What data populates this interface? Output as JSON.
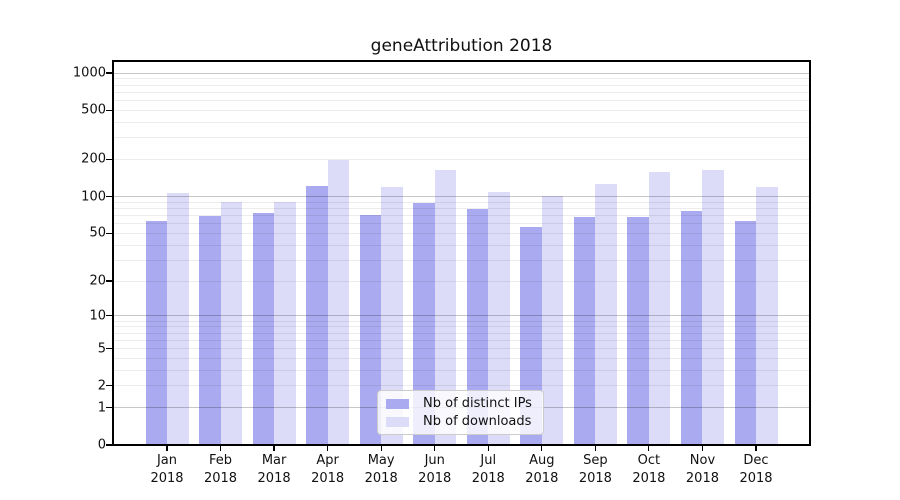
{
  "chart_data": {
    "type": "bar",
    "title": "geneAttribution 2018",
    "categories": [
      "Jan",
      "Feb",
      "Mar",
      "Apr",
      "May",
      "Jun",
      "Jul",
      "Aug",
      "Sep",
      "Oct",
      "Nov",
      "Dec"
    ],
    "x_year_label": "2018",
    "series": [
      {
        "name": "Nb of distinct IPs",
        "color": "#aaaaf0",
        "values": [
          63,
          69,
          73,
          122,
          70,
          88,
          79,
          56,
          68,
          68,
          76,
          63
        ]
      },
      {
        "name": "Nb of downloads",
        "color": "#dcdcf8",
        "values": [
          107,
          91,
          91,
          199,
          120,
          164,
          108,
          101,
          126,
          157,
          163,
          120
        ]
      }
    ],
    "yscale": "log1p",
    "ylim": [
      0,
      1250
    ],
    "yticks": [
      0,
      1,
      2,
      5,
      10,
      20,
      50,
      100,
      200,
      500,
      1000
    ],
    "grid": "on",
    "legend_position": "lower-center-inside",
    "colors": {
      "axis": "#000000",
      "major_grid": "rgba(0,0,0,0.22)",
      "minor_grid": "rgba(0,0,0,0.075)",
      "background": "#ffffff",
      "text": "#111111"
    }
  }
}
